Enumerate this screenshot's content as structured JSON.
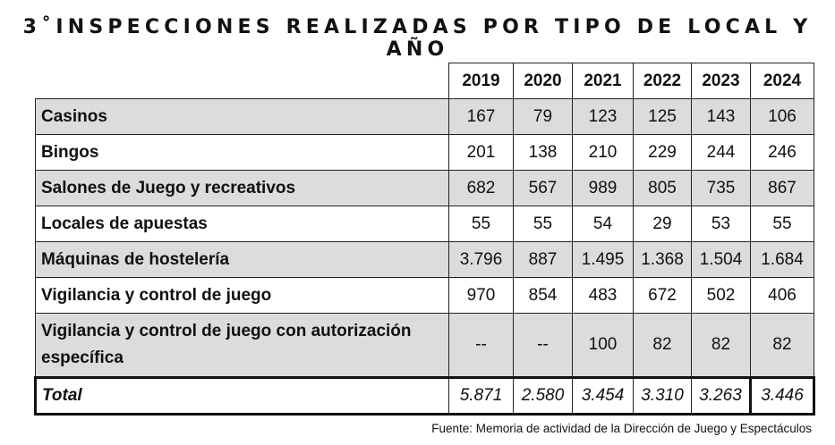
{
  "title": "3˚INSPECCIONES REALIZADAS POR TIPO DE LOCAL Y AÑO",
  "table": {
    "columns": [
      "2019",
      "2020",
      "2021",
      "2022",
      "2023",
      "2024"
    ],
    "rows": [
      {
        "label": "Casinos",
        "values": [
          "167",
          "79",
          "123",
          "125",
          "143",
          "106"
        ]
      },
      {
        "label": "Bingos",
        "values": [
          "201",
          "138",
          "210",
          "229",
          "244",
          "246"
        ]
      },
      {
        "label": "Salones de Juego y recreativos",
        "values": [
          "682",
          "567",
          "989",
          "805",
          "735",
          "867"
        ]
      },
      {
        "label": "Locales de apuestas",
        "values": [
          "55",
          "55",
          "54",
          "29",
          "53",
          "55"
        ]
      },
      {
        "label": "Máquinas de hostelería",
        "values": [
          "3.796",
          "887",
          "1.495",
          "1.368",
          "1.504",
          "1.684"
        ]
      },
      {
        "label": "Vigilancia y control de juego",
        "values": [
          "970",
          "854",
          "483",
          "672",
          "502",
          "406"
        ]
      },
      {
        "label": "Vigilancia y control de juego con autorización específica",
        "values": [
          "--",
          "--",
          "100",
          "82",
          "82",
          "82"
        ]
      }
    ],
    "total": {
      "label": "Total",
      "values": [
        "5.871",
        "2.580",
        "3.454",
        "3.310",
        "3.263",
        "3.446"
      ]
    }
  },
  "source": "Fuente: Memoria  de actividad de la Dirección de Juego y Espectáculos",
  "colors": {
    "row_shade": "#dcdcdc",
    "border": "#222222"
  }
}
